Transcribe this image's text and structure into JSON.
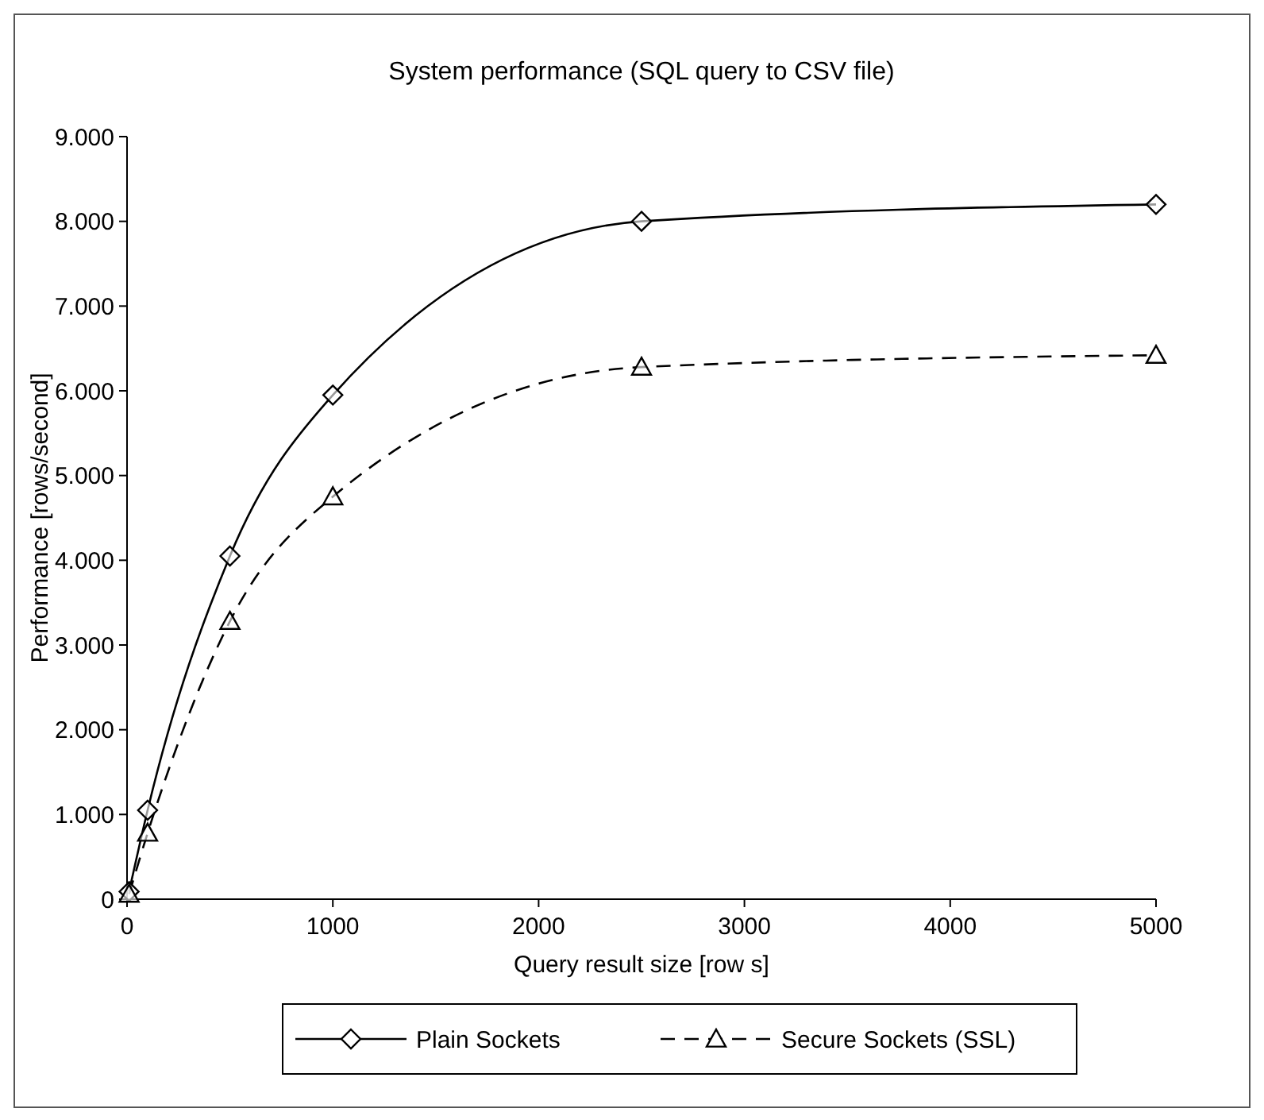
{
  "chart_data": {
    "type": "line",
    "title": "System performance (SQL query to CSV file)",
    "xlabel": "Query result size [row s]",
    "ylabel": "Performance [rows/second]",
    "xlim": [
      0,
      5000
    ],
    "xticks": [
      0,
      1000,
      2000,
      3000,
      4000,
      5000
    ],
    "ylim": [
      0,
      9000
    ],
    "yticks": [
      0,
      {
        "value": 1000,
        "label": "1.000"
      },
      {
        "value": 2000,
        "label": "2.000"
      },
      {
        "value": 3000,
        "label": "3.000"
      },
      {
        "value": 4000,
        "label": "4.000"
      },
      {
        "value": 5000,
        "label": "5.000"
      },
      {
        "value": 6000,
        "label": "6.000"
      },
      {
        "value": 7000,
        "label": "7.000"
      },
      {
        "value": 8000,
        "label": "8.000"
      },
      {
        "value": 9000,
        "label": "9.000"
      }
    ],
    "x": [
      10,
      100,
      500,
      1000,
      2500,
      5000
    ],
    "series": [
      {
        "name": "Plain Sockets",
        "color": "#000000",
        "values": [
          90,
          1050,
          4050,
          5950,
          8000,
          8200
        ],
        "marker": "diamond",
        "line_style": "solid"
      },
      {
        "name": "Secure Sockets (SSL)",
        "color": "#000000",
        "values": [
          60,
          780,
          3280,
          4750,
          6280,
          6420
        ],
        "marker": "triangle",
        "line_style": "dashed"
      }
    ],
    "grid": false,
    "legend": "bottom"
  }
}
